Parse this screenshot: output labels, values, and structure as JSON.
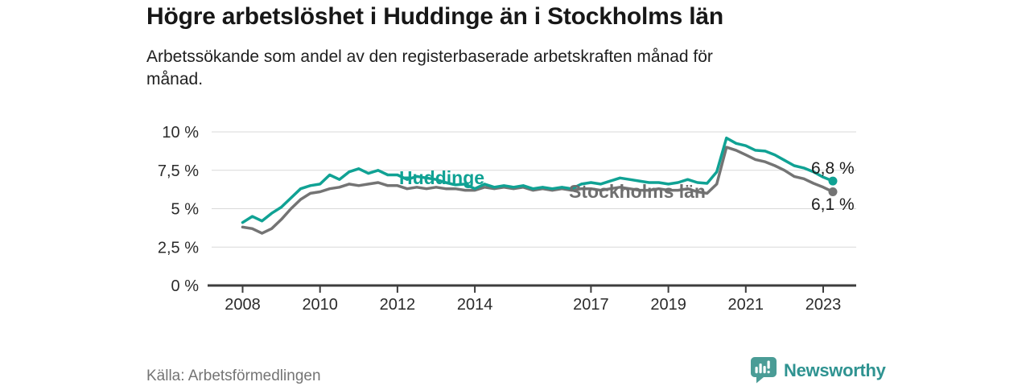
{
  "header": {
    "title": "Högre arbetslöshet i Huddinge än i Stockholms län",
    "subtitle_line1": "Arbetssökande som andel av den registerbaserade arbetskraften månad för",
    "subtitle_line2": "månad."
  },
  "footer": {
    "source": "Källa: Arbetsförmedlingen",
    "brand": "Newsworthy"
  },
  "colors": {
    "huddinge_teal": "#10a294",
    "stockholm_gray": "#747474",
    "stockholm_label_gray": "#6f6f6f",
    "grid": "#d9d9d9",
    "axis": "#3d3d3d",
    "axis_text": "#2b2b2b",
    "text_dark": "#1c1c1c",
    "brand_teal": "#2f9391",
    "logo_bubble_teal": "#4a9c96",
    "muted_text": "#747474"
  },
  "chart_data": {
    "type": "line",
    "title": "Högre arbetslöshet i Huddinge än i Stockholms län",
    "subtitle": "Arbetssökande som andel av den registerbaserade arbetskraften månad för månad.",
    "source": "Källa: Arbetsförmedlingen",
    "grid": true,
    "legend_position": "inline-labels",
    "xlim": [
      2007.2,
      2023.9
    ],
    "ylim": [
      0,
      10
    ],
    "x_start": 2008,
    "x_step_years": 0.25,
    "x_ticks": [
      2008,
      2010,
      2012,
      2014,
      2017,
      2019,
      2021,
      2023
    ],
    "y_ticks": [
      {
        "value": 0,
        "label": "0 %"
      },
      {
        "value": 2.5,
        "label": "2,5 %"
      },
      {
        "value": 5,
        "label": "5 %"
      },
      {
        "value": 7.5,
        "label": "7,5 %"
      },
      {
        "value": 10,
        "label": "10 %"
      }
    ],
    "series": [
      {
        "id": "huddinge",
        "name": "Huddinge",
        "color": "#10a294",
        "end_label": "6,8 %",
        "end_value": 6.8,
        "values": [
          4.1,
          4.5,
          4.2,
          4.7,
          5.1,
          5.7,
          6.3,
          6.5,
          6.6,
          7.2,
          6.9,
          7.4,
          7.6,
          7.3,
          7.5,
          7.2,
          7.2,
          6.9,
          7.1,
          7.0,
          6.9,
          6.7,
          6.55,
          6.6,
          6.3,
          6.6,
          6.4,
          6.5,
          6.4,
          6.5,
          6.3,
          6.4,
          6.3,
          6.4,
          6.3,
          6.6,
          6.7,
          6.6,
          6.8,
          7.0,
          6.9,
          6.8,
          6.7,
          6.7,
          6.6,
          6.7,
          6.9,
          6.7,
          6.65,
          7.4,
          9.6,
          9.25,
          9.1,
          8.8,
          8.75,
          8.5,
          8.15,
          7.8,
          7.65,
          7.4,
          7.05,
          6.8
        ]
      },
      {
        "id": "stockholm",
        "name": "Stockholms län",
        "color": "#747474",
        "label_color": "#6f6f6f",
        "end_label": "6,1 %",
        "end_value": 6.1,
        "values": [
          3.8,
          3.7,
          3.4,
          3.7,
          4.3,
          5.0,
          5.6,
          6.0,
          6.1,
          6.3,
          6.4,
          6.6,
          6.5,
          6.6,
          6.7,
          6.5,
          6.5,
          6.3,
          6.4,
          6.3,
          6.4,
          6.3,
          6.3,
          6.2,
          6.2,
          6.4,
          6.3,
          6.4,
          6.3,
          6.4,
          6.2,
          6.3,
          6.2,
          6.3,
          6.2,
          6.3,
          6.3,
          6.2,
          6.3,
          6.4,
          6.3,
          6.2,
          6.2,
          6.3,
          6.2,
          6.2,
          6.3,
          6.1,
          6.0,
          6.6,
          9.0,
          8.8,
          8.5,
          8.2,
          8.05,
          7.8,
          7.5,
          7.1,
          6.95,
          6.65,
          6.4,
          6.1
        ]
      }
    ]
  }
}
